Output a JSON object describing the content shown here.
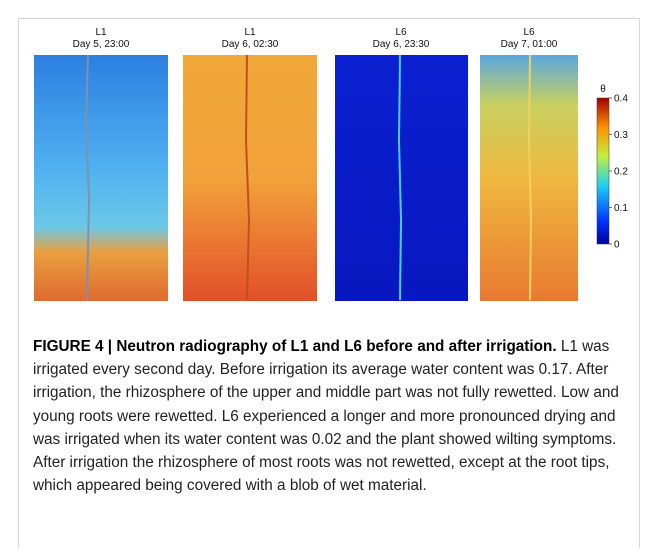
{
  "panels": [
    {
      "label": "L1",
      "time": "Day 5, 23:00"
    },
    {
      "label": "L1",
      "time": "Day 6, 02:30"
    },
    {
      "label": "L6",
      "time": "Day 6, 23:30"
    },
    {
      "label": "L6",
      "time": "Day 7, 01:00"
    }
  ],
  "colorbar": {
    "label": "θ",
    "lim": [
      0,
      0.4
    ],
    "ticks": [
      0,
      0.1,
      0.2,
      0.3,
      0.4
    ]
  },
  "caption": {
    "title": "FIGURE 4 | Neutron radiography of L1 and L6 before and after irrigation.",
    "body": "L1 was irrigated every second day. Before irrigation its average water content was 0.17. After irrigation, the rhizosphere of the upper and middle part was not fully rewetted. Low and young roots were rewetted. L6 experienced a longer and more pronounced drying and was irrigated when its water content was 0.02 and the plant showed wilting symptoms. After irrigation the rhizosphere of most roots was not rewetted, except at the root tips, which appeared being covered with a blob of wet material."
  }
}
